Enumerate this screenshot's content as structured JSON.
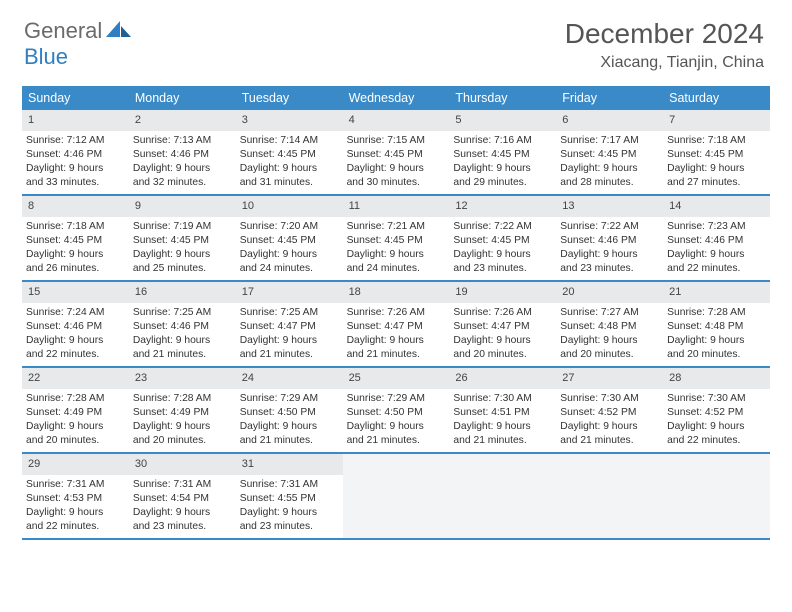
{
  "brand": {
    "part1": "General",
    "part2": "Blue"
  },
  "title": "December 2024",
  "location": "Xiacang, Tianjin, China",
  "colors": {
    "header_bar": "#3a8ac8",
    "daynum_bg": "#e7e9eb",
    "empty_bg": "#f3f4f5",
    "rule": "#3a8ac8",
    "text": "#333333",
    "title_text": "#555555",
    "logo_gray": "#6b6b6b",
    "logo_blue": "#2f7fc2",
    "page_bg": "#ffffff"
  },
  "dow": [
    "Sunday",
    "Monday",
    "Tuesday",
    "Wednesday",
    "Thursday",
    "Friday",
    "Saturday"
  ],
  "weeks": [
    [
      {
        "n": "1",
        "sr": "Sunrise: 7:12 AM",
        "ss": "Sunset: 4:46 PM",
        "d1": "Daylight: 9 hours",
        "d2": "and 33 minutes."
      },
      {
        "n": "2",
        "sr": "Sunrise: 7:13 AM",
        "ss": "Sunset: 4:46 PM",
        "d1": "Daylight: 9 hours",
        "d2": "and 32 minutes."
      },
      {
        "n": "3",
        "sr": "Sunrise: 7:14 AM",
        "ss": "Sunset: 4:45 PM",
        "d1": "Daylight: 9 hours",
        "d2": "and 31 minutes."
      },
      {
        "n": "4",
        "sr": "Sunrise: 7:15 AM",
        "ss": "Sunset: 4:45 PM",
        "d1": "Daylight: 9 hours",
        "d2": "and 30 minutes."
      },
      {
        "n": "5",
        "sr": "Sunrise: 7:16 AM",
        "ss": "Sunset: 4:45 PM",
        "d1": "Daylight: 9 hours",
        "d2": "and 29 minutes."
      },
      {
        "n": "6",
        "sr": "Sunrise: 7:17 AM",
        "ss": "Sunset: 4:45 PM",
        "d1": "Daylight: 9 hours",
        "d2": "and 28 minutes."
      },
      {
        "n": "7",
        "sr": "Sunrise: 7:18 AM",
        "ss": "Sunset: 4:45 PM",
        "d1": "Daylight: 9 hours",
        "d2": "and 27 minutes."
      }
    ],
    [
      {
        "n": "8",
        "sr": "Sunrise: 7:18 AM",
        "ss": "Sunset: 4:45 PM",
        "d1": "Daylight: 9 hours",
        "d2": "and 26 minutes."
      },
      {
        "n": "9",
        "sr": "Sunrise: 7:19 AM",
        "ss": "Sunset: 4:45 PM",
        "d1": "Daylight: 9 hours",
        "d2": "and 25 minutes."
      },
      {
        "n": "10",
        "sr": "Sunrise: 7:20 AM",
        "ss": "Sunset: 4:45 PM",
        "d1": "Daylight: 9 hours",
        "d2": "and 24 minutes."
      },
      {
        "n": "11",
        "sr": "Sunrise: 7:21 AM",
        "ss": "Sunset: 4:45 PM",
        "d1": "Daylight: 9 hours",
        "d2": "and 24 minutes."
      },
      {
        "n": "12",
        "sr": "Sunrise: 7:22 AM",
        "ss": "Sunset: 4:45 PM",
        "d1": "Daylight: 9 hours",
        "d2": "and 23 minutes."
      },
      {
        "n": "13",
        "sr": "Sunrise: 7:22 AM",
        "ss": "Sunset: 4:46 PM",
        "d1": "Daylight: 9 hours",
        "d2": "and 23 minutes."
      },
      {
        "n": "14",
        "sr": "Sunrise: 7:23 AM",
        "ss": "Sunset: 4:46 PM",
        "d1": "Daylight: 9 hours",
        "d2": "and 22 minutes."
      }
    ],
    [
      {
        "n": "15",
        "sr": "Sunrise: 7:24 AM",
        "ss": "Sunset: 4:46 PM",
        "d1": "Daylight: 9 hours",
        "d2": "and 22 minutes."
      },
      {
        "n": "16",
        "sr": "Sunrise: 7:25 AM",
        "ss": "Sunset: 4:46 PM",
        "d1": "Daylight: 9 hours",
        "d2": "and 21 minutes."
      },
      {
        "n": "17",
        "sr": "Sunrise: 7:25 AM",
        "ss": "Sunset: 4:47 PM",
        "d1": "Daylight: 9 hours",
        "d2": "and 21 minutes."
      },
      {
        "n": "18",
        "sr": "Sunrise: 7:26 AM",
        "ss": "Sunset: 4:47 PM",
        "d1": "Daylight: 9 hours",
        "d2": "and 21 minutes."
      },
      {
        "n": "19",
        "sr": "Sunrise: 7:26 AM",
        "ss": "Sunset: 4:47 PM",
        "d1": "Daylight: 9 hours",
        "d2": "and 20 minutes."
      },
      {
        "n": "20",
        "sr": "Sunrise: 7:27 AM",
        "ss": "Sunset: 4:48 PM",
        "d1": "Daylight: 9 hours",
        "d2": "and 20 minutes."
      },
      {
        "n": "21",
        "sr": "Sunrise: 7:28 AM",
        "ss": "Sunset: 4:48 PM",
        "d1": "Daylight: 9 hours",
        "d2": "and 20 minutes."
      }
    ],
    [
      {
        "n": "22",
        "sr": "Sunrise: 7:28 AM",
        "ss": "Sunset: 4:49 PM",
        "d1": "Daylight: 9 hours",
        "d2": "and 20 minutes."
      },
      {
        "n": "23",
        "sr": "Sunrise: 7:28 AM",
        "ss": "Sunset: 4:49 PM",
        "d1": "Daylight: 9 hours",
        "d2": "and 20 minutes."
      },
      {
        "n": "24",
        "sr": "Sunrise: 7:29 AM",
        "ss": "Sunset: 4:50 PM",
        "d1": "Daylight: 9 hours",
        "d2": "and 21 minutes."
      },
      {
        "n": "25",
        "sr": "Sunrise: 7:29 AM",
        "ss": "Sunset: 4:50 PM",
        "d1": "Daylight: 9 hours",
        "d2": "and 21 minutes."
      },
      {
        "n": "26",
        "sr": "Sunrise: 7:30 AM",
        "ss": "Sunset: 4:51 PM",
        "d1": "Daylight: 9 hours",
        "d2": "and 21 minutes."
      },
      {
        "n": "27",
        "sr": "Sunrise: 7:30 AM",
        "ss": "Sunset: 4:52 PM",
        "d1": "Daylight: 9 hours",
        "d2": "and 21 minutes."
      },
      {
        "n": "28",
        "sr": "Sunrise: 7:30 AM",
        "ss": "Sunset: 4:52 PM",
        "d1": "Daylight: 9 hours",
        "d2": "and 22 minutes."
      }
    ],
    [
      {
        "n": "29",
        "sr": "Sunrise: 7:31 AM",
        "ss": "Sunset: 4:53 PM",
        "d1": "Daylight: 9 hours",
        "d2": "and 22 minutes."
      },
      {
        "n": "30",
        "sr": "Sunrise: 7:31 AM",
        "ss": "Sunset: 4:54 PM",
        "d1": "Daylight: 9 hours",
        "d2": "and 23 minutes."
      },
      {
        "n": "31",
        "sr": "Sunrise: 7:31 AM",
        "ss": "Sunset: 4:55 PM",
        "d1": "Daylight: 9 hours",
        "d2": "and 23 minutes."
      },
      null,
      null,
      null,
      null
    ]
  ]
}
